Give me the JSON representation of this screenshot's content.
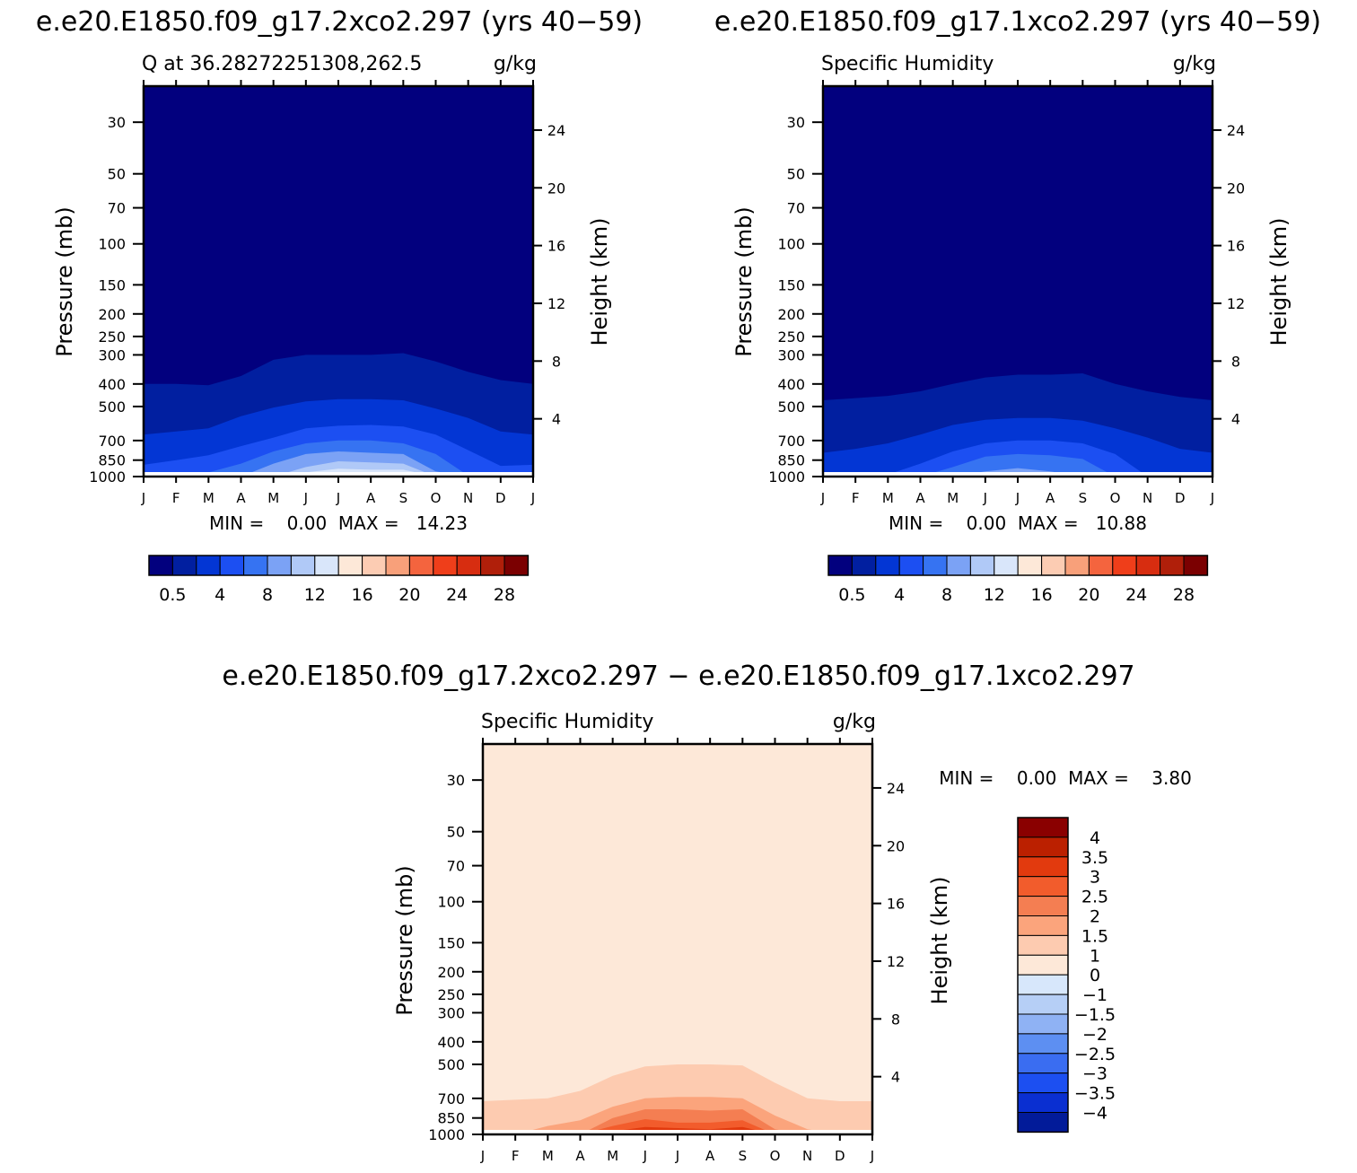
{
  "colors": {
    "seq": [
      "#02007e",
      "#011fa0",
      "#0336d4",
      "#1c4ff2",
      "#3673f2",
      "#7ba2f5",
      "#b0c9f7",
      "#d9e6fa",
      "#fde8d8",
      "#fcccb3",
      "#f8a07a",
      "#f4643e",
      "#ef3e1a",
      "#d72d10",
      "#b01f0a",
      "#7b0001"
    ],
    "diff": [
      "#8a0000",
      "#bb2000",
      "#e23a0e",
      "#f25c2c",
      "#f47e52",
      "#fba47c",
      "#fdcbb0",
      "#fde8d8",
      "#d7e7fb",
      "#b6cff6",
      "#8fb2f4",
      "#5d8ff2",
      "#3a6df1",
      "#1c4ff1",
      "#0a2fd1",
      "#021b99"
    ]
  },
  "charts": {
    "left": {
      "figure_title": "e.e20.E1850.f09_g17.2xco2.297 (yrs 40−59)",
      "subtitle_left": "Q at 36.28272251308,262.5",
      "units": "g/kg",
      "ylabel": "Pressure (mb)",
      "ylabel_right": "Height (km)",
      "stats": "MIN =    0.00  MAX =   14.23",
      "colorbar_labels": [
        "0.5",
        "4",
        "8",
        "12",
        "16",
        "20",
        "24",
        "28"
      ]
    },
    "right": {
      "figure_title": "e.e20.E1850.f09_g17.1xco2.297 (yrs 40−59)",
      "subtitle_left": "Specific Humidity",
      "units": "g/kg",
      "ylabel": "Pressure (mb)",
      "ylabel_right": "Height (km)",
      "stats": "MIN =    0.00  MAX =   10.88",
      "colorbar_labels": [
        "0.5",
        "4",
        "8",
        "12",
        "16",
        "20",
        "24",
        "28"
      ]
    },
    "diff": {
      "figure_title": "e.e20.E1850.f09_g17.2xco2.297 − e.e20.E1850.f09_g17.1xco2.297",
      "subtitle_left": "Specific Humidity",
      "units": "g/kg",
      "ylabel": "Pressure (mb)",
      "ylabel_right": "Height (km)",
      "stats": "MIN =    0.00  MAX =    3.80",
      "colorbar_labels": [
        "4",
        "3.5",
        "3",
        "2.5",
        "2",
        "1.5",
        "1",
        "0",
        "−1",
        "−1.5",
        "−2",
        "−2.5",
        "−3",
        "−3.5",
        "−4"
      ]
    }
  },
  "chart_data": [
    {
      "type": "contour",
      "title": "e.e20.E1850.f09_g17.2xco2.297 (yrs 40−59)",
      "subtitle": "Q at 36.28272251308,262.5",
      "units": "g/kg",
      "x_tick_labels": [
        "J",
        "F",
        "M",
        "A",
        "M",
        "J",
        "J",
        "A",
        "S",
        "O",
        "N",
        "D",
        "J"
      ],
      "y_ticks_mb": [
        30,
        50,
        70,
        100,
        150,
        200,
        250,
        300,
        400,
        500,
        700,
        850,
        1000
      ],
      "y_right_ticks_km": [
        4,
        8,
        12,
        16,
        20,
        24
      ],
      "levels": [
        0.5,
        2,
        4,
        6,
        8,
        10,
        12,
        14
      ],
      "boundaries_mb": [
        [
          400,
          400,
          405,
          370,
          315,
          300,
          300,
          300,
          295,
          320,
          355,
          385,
          400
        ],
        [
          660,
          640,
          620,
          550,
          505,
          475,
          465,
          465,
          470,
          510,
          560,
          640,
          660
        ],
        [
          890,
          850,
          810,
          740,
          680,
          620,
          605,
          600,
          610,
          660,
          770,
          900,
          890
        ],
        [
          1000,
          1000,
          960,
          880,
          780,
          720,
          700,
          700,
          720,
          800,
          990,
          1000,
          1000
        ],
        [
          1000,
          1000,
          1000,
          1000,
          880,
          800,
          780,
          790,
          800,
          950,
          1000,
          1000,
          1000
        ],
        [
          1000,
          1000,
          1000,
          1000,
          1000,
          910,
          860,
          870,
          880,
          1000,
          1000,
          1000,
          1000
        ],
        [
          1000,
          1000,
          1000,
          1000,
          1000,
          960,
          925,
          935,
          935,
          1000,
          1000,
          1000,
          1000
        ]
      ],
      "min": 0.0,
      "max": 14.23
    },
    {
      "type": "contour",
      "title": "e.e20.E1850.f09_g17.1xco2.297 (yrs 40−59)",
      "subtitle": "Specific Humidity",
      "units": "g/kg",
      "x_tick_labels": [
        "J",
        "F",
        "M",
        "A",
        "M",
        "J",
        "J",
        "A",
        "S",
        "O",
        "N",
        "D",
        "J"
      ],
      "y_ticks_mb": [
        30,
        50,
        70,
        100,
        150,
        200,
        250,
        300,
        400,
        500,
        700,
        850,
        1000
      ],
      "y_right_ticks_km": [
        4,
        8,
        12,
        16,
        20,
        24
      ],
      "levels": [
        0.5,
        2,
        4,
        6,
        8,
        10,
        12,
        14
      ],
      "boundaries_mb": [
        [
          470,
          460,
          450,
          430,
          400,
          375,
          365,
          365,
          360,
          400,
          430,
          455,
          470
        ],
        [
          790,
          760,
          720,
          660,
          600,
          570,
          560,
          560,
          575,
          620,
          680,
          760,
          790
        ],
        [
          1000,
          1000,
          980,
          880,
          780,
          720,
          700,
          700,
          720,
          800,
          1000,
          1000,
          1000
        ],
        [
          1000,
          1000,
          1000,
          1000,
          910,
          820,
          800,
          810,
          840,
          1000,
          1000,
          1000,
          1000
        ],
        [
          1000,
          1000,
          1000,
          1000,
          1000,
          950,
          920,
          950,
          1000,
          1000,
          1000,
          1000,
          1000
        ],
        [
          1000,
          1000,
          1000,
          1000,
          1000,
          1000,
          1000,
          1000,
          1000,
          1000,
          1000,
          1000,
          1000
        ]
      ],
      "min": 0.0,
      "max": 10.88
    },
    {
      "type": "contour",
      "title": "e.e20.E1850.f09_g17.2xco2.297 − e.e20.E1850.f09_g17.1xco2.297",
      "subtitle": "Specific Humidity",
      "units": "g/kg",
      "x_tick_labels": [
        "J",
        "F",
        "M",
        "A",
        "M",
        "J",
        "J",
        "A",
        "S",
        "O",
        "N",
        "D",
        "J"
      ],
      "y_ticks_mb": [
        30,
        50,
        70,
        100,
        150,
        200,
        250,
        300,
        400,
        500,
        700,
        850,
        1000
      ],
      "y_right_ticks_km": [
        4,
        8,
        12,
        16,
        20,
        24
      ],
      "levels": [
        0,
        1,
        1.5,
        2,
        2.5,
        3,
        3.5,
        4
      ],
      "boundaries_mb": [
        [
          720,
          710,
          700,
          650,
          560,
          510,
          500,
          500,
          505,
          600,
          700,
          720,
          720
        ],
        [
          1000,
          1000,
          920,
          870,
          760,
          700,
          690,
          690,
          700,
          830,
          950,
          1000,
          1000
        ],
        [
          1000,
          1000,
          1000,
          1000,
          850,
          780,
          780,
          790,
          780,
          950,
          1000,
          1000,
          1000
        ],
        [
          1000,
          1000,
          1000,
          1000,
          920,
          860,
          890,
          890,
          870,
          1000,
          1000,
          1000,
          1000
        ],
        [
          1000,
          1000,
          1000,
          1000,
          970,
          930,
          940,
          950,
          930,
          1000,
          1000,
          1000,
          1000
        ]
      ],
      "min": 0.0,
      "max": 3.8
    }
  ]
}
